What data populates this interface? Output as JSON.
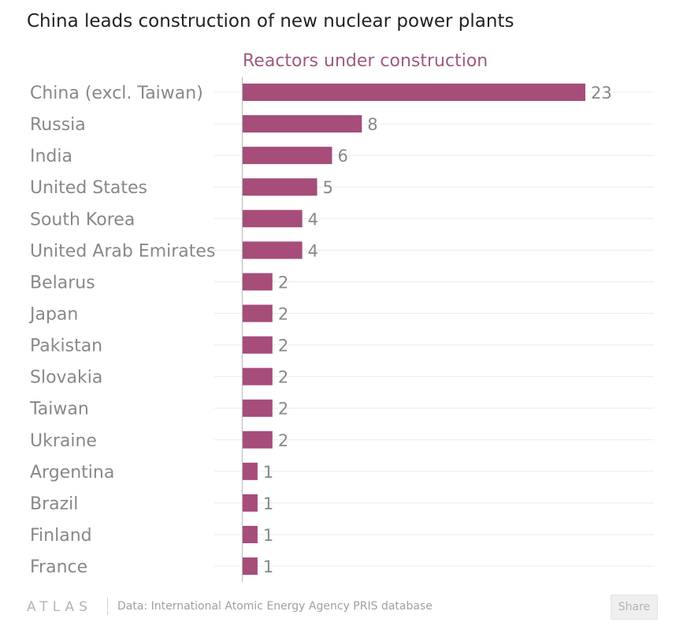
{
  "title": "China leads construction of new nuclear power plants",
  "footer": {
    "logo": "ATLAS",
    "source": "Data: International Atomic Energy Agency PRIS database",
    "share_label": "Share"
  },
  "colors": {
    "bar": "#a64d7a",
    "series_label": "#9e5a80",
    "text": "#888888",
    "grid": "#ececec"
  },
  "chart_data": {
    "type": "bar",
    "orientation": "horizontal",
    "title": "China leads construction of new nuclear power plants",
    "series": [
      {
        "name": "Reactors under construction",
        "values": [
          23,
          8,
          6,
          5,
          4,
          4,
          2,
          2,
          2,
          2,
          2,
          2,
          1,
          1,
          1,
          1
        ]
      }
    ],
    "categories": [
      "China (excl. Taiwan)",
      "Russia",
      "India",
      "United States",
      "South Korea",
      "United Arab Emirates",
      "Belarus",
      "Japan",
      "Pakistan",
      "Slovakia",
      "Taiwan",
      "Ukraine",
      "Argentina",
      "Brazil",
      "Finland",
      "France"
    ],
    "values": [
      23,
      8,
      6,
      5,
      4,
      4,
      2,
      2,
      2,
      2,
      2,
      2,
      1,
      1,
      1,
      1
    ],
    "xlim": [
      0,
      23
    ],
    "grid": true,
    "data_labels": true
  }
}
